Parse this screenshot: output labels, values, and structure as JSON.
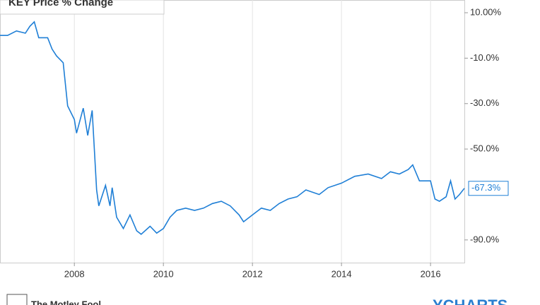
{
  "chart_data": {
    "type": "line",
    "title": "KEY Price % Change",
    "footer_left": "The Motley Fool",
    "footer_right": "YCHARTS",
    "x": [
      2006.33,
      2006.5,
      2006.7,
      2006.9,
      2007.0,
      2007.1,
      2007.2,
      2007.4,
      2007.5,
      2007.6,
      2007.75,
      2007.85,
      2008.0,
      2008.05,
      2008.2,
      2008.3,
      2008.4,
      2008.5,
      2008.55,
      2008.7,
      2008.8,
      2008.85,
      2008.95,
      2009.1,
      2009.25,
      2009.4,
      2009.5,
      2009.7,
      2009.85,
      2010.0,
      2010.15,
      2010.3,
      2010.5,
      2010.7,
      2010.9,
      2011.1,
      2011.3,
      2011.5,
      2011.7,
      2011.8,
      2012.0,
      2012.2,
      2012.4,
      2012.6,
      2012.8,
      2013.0,
      2013.2,
      2013.5,
      2013.7,
      2014.0,
      2014.3,
      2014.6,
      2014.9,
      2015.1,
      2015.3,
      2015.5,
      2015.6,
      2015.75,
      2016.0,
      2016.1,
      2016.2,
      2016.35,
      2016.45,
      2016.55,
      2016.65,
      2016.76
    ],
    "series": [
      {
        "name": "KEY Price % Change",
        "color": "#1f7fd6",
        "values": [
          0,
          0,
          2,
          1,
          4,
          6,
          -1,
          -1,
          -6,
          -9,
          -12,
          -31,
          -37,
          -43,
          -32,
          -44,
          -33,
          -68,
          -75,
          -66,
          -75,
          -67,
          -80,
          -85,
          -79,
          -86,
          -87.5,
          -84,
          -87,
          -85,
          -80,
          -77,
          -76,
          -77,
          -76,
          -74,
          -73,
          -75,
          -79,
          -82,
          -79,
          -76,
          -77,
          -74,
          -72,
          -71,
          -68,
          -70,
          -67,
          -65,
          -62,
          -61,
          -63,
          -60,
          -61,
          -59,
          -57,
          -64,
          -64,
          -72,
          -73,
          -71,
          -64,
          -72,
          -70,
          -67.3
        ],
        "value_labels": [
          null,
          null,
          null,
          null,
          null,
          null,
          null,
          null,
          null,
          null,
          null,
          null,
          null,
          null,
          null,
          null,
          null,
          null,
          null,
          null,
          null,
          null,
          null,
          null,
          null,
          null,
          null,
          null,
          null,
          null,
          null,
          null,
          null,
          null,
          null,
          null,
          null,
          null,
          null,
          null,
          null,
          null,
          null,
          null,
          null,
          null,
          null,
          null,
          null,
          null,
          null,
          null,
          null,
          null,
          null,
          null,
          null,
          null,
          null,
          null,
          null,
          null,
          null,
          null,
          null,
          "-67.3%"
        ]
      }
    ],
    "xlim": [
      2006.33,
      2016.76
    ],
    "xticks": [
      2008,
      2010,
      2012,
      2014,
      2016
    ],
    "ylim": [
      15.6,
      -100
    ],
    "yticks": [
      {
        "value": 10,
        "label": "10.00%"
      },
      {
        "value": -10,
        "label": "-10.0%"
      },
      {
        "value": -30,
        "label": "-30.0%"
      },
      {
        "value": -50,
        "label": "-50.0%"
      },
      {
        "value": -90,
        "label": "-90.0%"
      }
    ],
    "grid": true
  }
}
